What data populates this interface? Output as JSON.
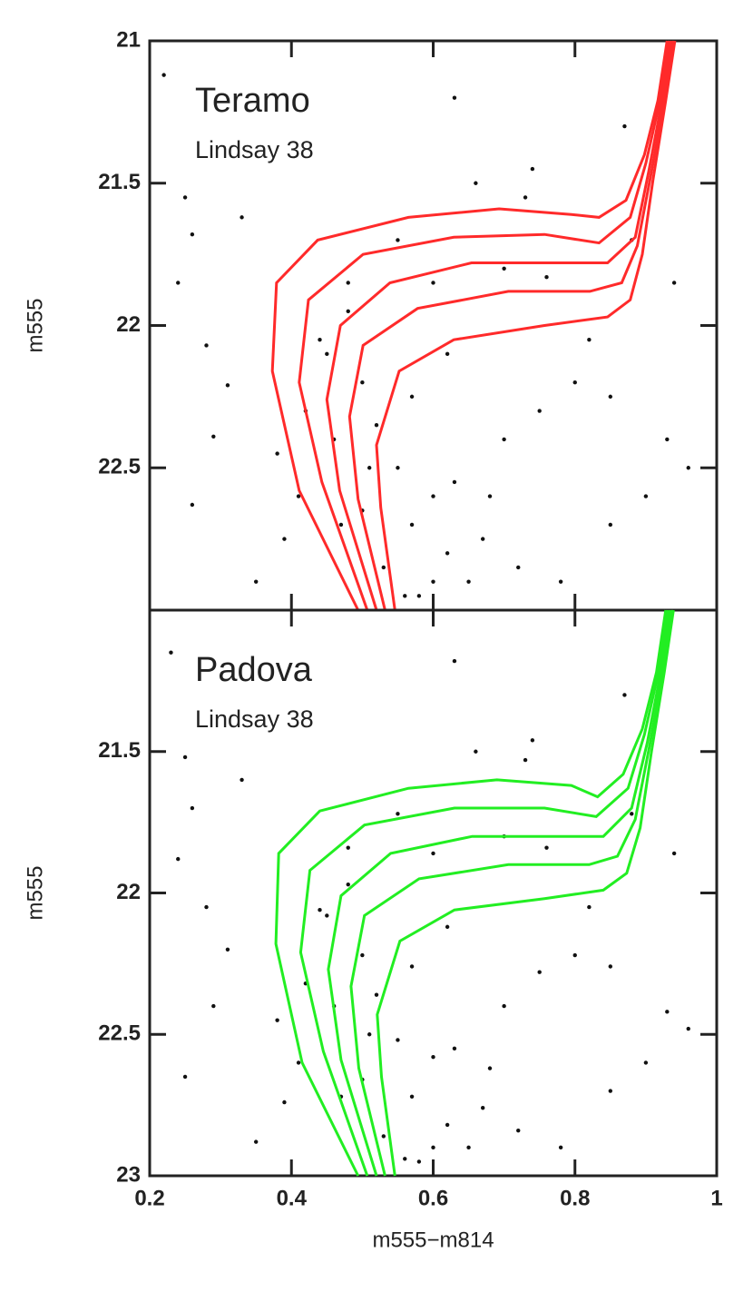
{
  "chart_data": [
    {
      "type": "scatter",
      "annotations": [
        "Teramo",
        "Lindsay 38"
      ],
      "ylabel": "m555",
      "xlim": [
        0.2,
        1
      ],
      "ylim": [
        23,
        21
      ],
      "xticks": [
        0.2,
        0.4,
        0.6,
        0.8,
        1
      ],
      "yticks": [
        21,
        21.5,
        22,
        22.5
      ],
      "points": {
        "color": "#111111",
        "x": [
          0.25,
          0.26,
          0.22,
          0.33,
          0.28,
          0.24,
          0.31,
          0.29,
          0.26,
          0.35,
          0.38,
          0.42,
          0.45,
          0.48,
          0.5,
          0.52,
          0.55,
          0.57,
          0.6,
          0.62,
          0.65,
          0.58,
          0.63,
          0.68,
          0.7,
          0.75,
          0.8,
          0.85,
          0.9,
          0.93,
          0.96,
          0.94,
          0.88,
          0.73,
          0.66,
          0.55,
          0.6,
          0.48,
          0.44,
          0.46,
          0.5,
          0.53,
          0.56,
          0.6,
          0.67,
          0.72,
          0.78,
          0.85,
          0.7,
          0.76,
          0.82,
          0.63,
          0.87,
          0.74,
          0.41,
          0.39,
          0.47,
          0.51,
          0.57,
          0.62
        ],
        "y": [
          21.55,
          21.68,
          21.12,
          21.62,
          22.07,
          21.85,
          22.21,
          22.39,
          22.63,
          22.9,
          22.45,
          22.3,
          22.1,
          21.95,
          22.2,
          22.35,
          22.5,
          22.7,
          22.6,
          22.8,
          22.9,
          22.95,
          22.55,
          22.6,
          22.4,
          22.3,
          22.2,
          22.25,
          22.6,
          22.4,
          22.5,
          21.85,
          21.7,
          21.55,
          21.5,
          21.7,
          21.85,
          21.85,
          22.05,
          22.4,
          22.65,
          22.85,
          22.95,
          22.9,
          22.75,
          22.85,
          22.9,
          22.7,
          21.8,
          21.83,
          22.05,
          21.2,
          21.3,
          21.45,
          22.6,
          22.75,
          22.7,
          22.5,
          22.25,
          22.1
        ]
      },
      "lines": [
        {
          "color": "#ff2a2a",
          "x": [
            0.494,
            0.411,
            0.373,
            0.379,
            0.437,
            0.565,
            0.693,
            0.795,
            0.834,
            0.872,
            0.898,
            0.917,
            0.93
          ],
          "y": [
            23,
            22.58,
            22.16,
            21.85,
            21.7,
            21.62,
            21.59,
            21.61,
            21.62,
            21.56,
            21.4,
            21.21,
            21
          ]
        },
        {
          "color": "#ff2a2a",
          "x": [
            0.507,
            0.443,
            0.411,
            0.424,
            0.501,
            0.629,
            0.757,
            0.834,
            0.878,
            0.9,
            0.92,
            0.933
          ],
          "y": [
            23,
            22.55,
            22.2,
            21.91,
            21.75,
            21.69,
            21.68,
            21.71,
            21.62,
            21.43,
            21.21,
            21
          ]
        },
        {
          "color": "#ff2a2a",
          "x": [
            0.52,
            0.468,
            0.45,
            0.469,
            0.539,
            0.654,
            0.782,
            0.846,
            0.885,
            0.904,
            0.923,
            0.936
          ],
          "y": [
            23,
            22.58,
            22.26,
            22,
            21.85,
            21.78,
            21.78,
            21.78,
            21.69,
            21.46,
            21.21,
            21
          ]
        },
        {
          "color": "#ff2a2a",
          "x": [
            0.532,
            0.494,
            0.482,
            0.501,
            0.578,
            0.706,
            0.821,
            0.866,
            0.888,
            0.908,
            0.926,
            0.939
          ],
          "y": [
            23,
            22.61,
            22.32,
            22.07,
            21.94,
            21.88,
            21.88,
            21.85,
            21.72,
            21.46,
            21.21,
            21
          ]
        },
        {
          "color": "#ff2a2a",
          "x": [
            0.546,
            0.526,
            0.52,
            0.552,
            0.629,
            0.757,
            0.846,
            0.878,
            0.895,
            0.91,
            0.928,
            0.941
          ],
          "y": [
            23,
            22.64,
            22.42,
            22.16,
            22.05,
            22,
            21.97,
            21.91,
            21.75,
            21.49,
            21.21,
            21
          ]
        }
      ]
    },
    {
      "type": "scatter",
      "annotations": [
        "Padova",
        "Lindsay 38"
      ],
      "ylabel": "m555",
      "xlabel": "m555−m814",
      "xlim": [
        0.2,
        1
      ],
      "ylim": [
        23,
        21
      ],
      "xticks": [
        0.2,
        0.4,
        0.6,
        0.8,
        1
      ],
      "yticks": [
        21.5,
        22,
        22.5,
        23
      ],
      "points": {
        "color": "#111111",
        "x": [
          0.25,
          0.26,
          0.23,
          0.33,
          0.28,
          0.24,
          0.31,
          0.29,
          0.25,
          0.35,
          0.38,
          0.42,
          0.45,
          0.48,
          0.5,
          0.52,
          0.55,
          0.57,
          0.6,
          0.62,
          0.65,
          0.58,
          0.63,
          0.68,
          0.7,
          0.75,
          0.8,
          0.85,
          0.9,
          0.93,
          0.96,
          0.94,
          0.88,
          0.73,
          0.66,
          0.55,
          0.6,
          0.48,
          0.44,
          0.46,
          0.5,
          0.53,
          0.56,
          0.6,
          0.67,
          0.72,
          0.78,
          0.85,
          0.7,
          0.76,
          0.82,
          0.63,
          0.87,
          0.74,
          0.41,
          0.39,
          0.47,
          0.51,
          0.57,
          0.62
        ],
        "y": [
          21.52,
          21.7,
          21.15,
          21.6,
          22.05,
          21.88,
          22.2,
          22.4,
          22.65,
          22.88,
          22.45,
          22.32,
          22.08,
          21.97,
          22.22,
          22.36,
          22.52,
          22.72,
          22.58,
          22.82,
          22.9,
          22.95,
          22.55,
          22.62,
          22.4,
          22.28,
          22.22,
          22.26,
          22.6,
          22.42,
          22.48,
          21.86,
          21.72,
          21.53,
          21.5,
          21.72,
          21.86,
          21.84,
          22.06,
          22.4,
          22.66,
          22.86,
          22.94,
          22.9,
          22.76,
          22.84,
          22.9,
          22.7,
          21.8,
          21.84,
          22.05,
          21.18,
          21.3,
          21.46,
          22.6,
          22.74,
          22.72,
          22.5,
          22.26,
          22.12
        ]
      },
      "lines": [
        {
          "color": "#22ee22",
          "x": [
            0.494,
            0.415,
            0.378,
            0.382,
            0.44,
            0.565,
            0.69,
            0.795,
            0.832,
            0.868,
            0.895,
            0.915,
            0.928
          ],
          "y": [
            23,
            22.6,
            22.18,
            21.86,
            21.71,
            21.63,
            21.6,
            21.62,
            21.66,
            21.58,
            21.42,
            21.22,
            21
          ]
        },
        {
          "color": "#22ee22",
          "x": [
            0.507,
            0.445,
            0.413,
            0.426,
            0.503,
            0.63,
            0.757,
            0.83,
            0.875,
            0.898,
            0.918,
            0.931
          ],
          "y": [
            23,
            22.56,
            22.21,
            21.92,
            21.76,
            21.7,
            21.7,
            21.73,
            21.63,
            21.44,
            21.22,
            21
          ]
        },
        {
          "color": "#22ee22",
          "x": [
            0.52,
            0.47,
            0.452,
            0.47,
            0.54,
            0.655,
            0.782,
            0.84,
            0.88,
            0.902,
            0.921,
            0.934
          ],
          "y": [
            23,
            22.59,
            22.27,
            22.01,
            21.86,
            21.8,
            21.8,
            21.8,
            21.7,
            21.47,
            21.22,
            21
          ]
        },
        {
          "color": "#22ee22",
          "x": [
            0.532,
            0.495,
            0.484,
            0.503,
            0.58,
            0.706,
            0.82,
            0.86,
            0.885,
            0.906,
            0.924,
            0.937
          ],
          "y": [
            23,
            22.62,
            22.33,
            22.08,
            21.95,
            21.9,
            21.9,
            21.87,
            21.74,
            21.47,
            21.22,
            21
          ]
        },
        {
          "color": "#22ee22",
          "x": [
            0.546,
            0.527,
            0.521,
            0.553,
            0.63,
            0.757,
            0.84,
            0.873,
            0.892,
            0.908,
            0.926,
            0.939
          ],
          "y": [
            23,
            22.65,
            22.43,
            22.17,
            22.06,
            22.02,
            21.99,
            21.93,
            21.77,
            21.5,
            21.22,
            21
          ]
        }
      ]
    }
  ]
}
